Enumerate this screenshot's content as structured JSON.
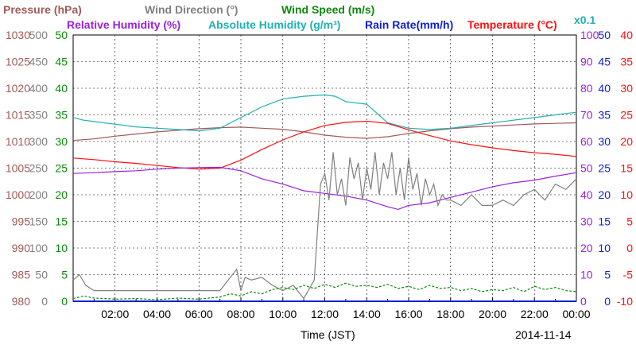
{
  "chart_data": {
    "type": "line",
    "date_label": "2014-11-14",
    "xlabel": "Time (JST)",
    "x_ticks": [
      "02:00",
      "04:00",
      "06:00",
      "08:00",
      "10:00",
      "12:00",
      "14:00",
      "16:00",
      "18:00",
      "20:00",
      "22:00",
      "00:00"
    ],
    "legend_top": [
      {
        "key": "pressure",
        "text": "Pressure (hPa)",
        "color": "#a05a5a"
      },
      {
        "key": "wind_dir",
        "text": "Wind Direction (°)",
        "color": "#808080"
      },
      {
        "key": "wind_speed",
        "text": "Wind Speed (m/s)",
        "color": "#0a8a0a"
      }
    ],
    "legend_bottom": [
      {
        "key": "rh",
        "text": "Relative Humidity (%)",
        "color": "#9a20e0"
      },
      {
        "key": "ah",
        "text": "Absolute Humidity (g/m³)",
        "color": "#20b0b0"
      },
      {
        "key": "rain",
        "text": "Rain Rate(mm/h)",
        "color": "#1020d0"
      },
      {
        "key": "temp",
        "text": "Temperature (°C)",
        "color": "#ff1010"
      }
    ],
    "ah_scale_note": "x0.1",
    "axes": {
      "pressure": {
        "color": "#a05a5a",
        "ylim": [
          980,
          1030
        ],
        "ticks": [
          "980",
          "985",
          "990",
          "995",
          "1000",
          "1005",
          "1010",
          "1015",
          "1020",
          "1025",
          "1030"
        ]
      },
      "wind_direction": {
        "color": "#808080",
        "ylim": [
          0,
          500
        ],
        "ticks": [
          "0",
          "50",
          "100",
          "150",
          "200",
          "250",
          "300",
          "350",
          "400",
          "450",
          "500"
        ]
      },
      "wind_speed": {
        "color": "#0a8a0a",
        "ylim": [
          0,
          50
        ],
        "ticks": [
          "0",
          "5",
          "10",
          "15",
          "20",
          "25",
          "30",
          "35",
          "40",
          "45",
          "50"
        ]
      },
      "humidity": {
        "color": "#9a20e0",
        "ylim": [
          0,
          100
        ],
        "ticks": [
          "0",
          "10",
          "20",
          "30",
          "40",
          "50",
          "60",
          "70",
          "80",
          "90",
          "100"
        ]
      },
      "rain": {
        "color": "#1020d0",
        "ylim": [
          0,
          50
        ],
        "ticks": [
          "0",
          "5",
          "10",
          "15",
          "20",
          "25",
          "30",
          "35",
          "40",
          "45",
          "50"
        ]
      },
      "temperature": {
        "color": "#ff1010",
        "ylim": [
          -10,
          40
        ],
        "ticks": [
          "-10",
          "-5",
          "0",
          "5",
          "10",
          "15",
          "20",
          "25",
          "30",
          "35",
          "40"
        ]
      }
    },
    "xlim_hours": [
      0,
      24
    ],
    "series": [
      {
        "name": "Pressure (hPa)",
        "axis": "pressure",
        "color": "#a05a5a",
        "x": [
          0,
          1,
          2,
          3,
          4,
          5,
          6,
          7,
          8,
          9,
          10,
          11,
          12,
          13,
          14,
          15,
          16,
          17,
          18,
          19,
          20,
          21,
          22,
          23,
          24
        ],
        "values": [
          1010.2,
          1010.5,
          1011.0,
          1011.4,
          1011.8,
          1012.1,
          1012.4,
          1012.6,
          1012.7,
          1012.5,
          1012.3,
          1011.8,
          1011.2,
          1010.8,
          1010.6,
          1010.9,
          1011.5,
          1012.0,
          1012.4,
          1012.7,
          1012.9,
          1013.1,
          1013.3,
          1013.4,
          1013.5
        ]
      },
      {
        "name": "Absolute Humidity (g/m³)",
        "axis": "humidity",
        "color": "#20b0b0",
        "x": [
          0,
          0.5,
          1,
          2,
          3,
          4,
          5,
          6,
          7,
          8,
          9,
          10,
          11,
          12,
          12.5,
          13,
          14,
          15,
          16,
          17,
          18,
          19,
          20,
          21,
          22,
          23,
          24
        ],
        "values": [
          69,
          68,
          67.5,
          66.5,
          65.5,
          65,
          64.5,
          64,
          65,
          69,
          73,
          76,
          77,
          77.5,
          77,
          75,
          74,
          67,
          65,
          64.5,
          65,
          66,
          67,
          68,
          69,
          70,
          71
        ]
      },
      {
        "name": "Temperature (°C)",
        "axis": "temperature",
        "color": "#ff1010",
        "x": [
          0,
          1,
          2,
          3,
          4,
          5,
          6,
          7,
          8,
          9,
          10,
          11,
          12,
          13,
          14,
          15,
          16,
          17,
          18,
          19,
          20,
          21,
          22,
          23,
          24
        ],
        "values": [
          16.9,
          16.6,
          16.2,
          15.9,
          15.5,
          15.1,
          14.8,
          15.0,
          16.5,
          18.5,
          20.3,
          21.8,
          23.0,
          23.6,
          23.8,
          23.4,
          22.2,
          21.1,
          20.1,
          19.4,
          18.8,
          18.3,
          17.9,
          17.6,
          17.2
        ]
      },
      {
        "name": "Relative Humidity (%)",
        "axis": "humidity",
        "color": "#9a20e0",
        "x": [
          0,
          1,
          2,
          3,
          4,
          5,
          6,
          7,
          8,
          9,
          10,
          11,
          12,
          13,
          14,
          15,
          15.5,
          16,
          17,
          18,
          19,
          20,
          21,
          22,
          23,
          24
        ],
        "values": [
          48,
          48.3,
          48.7,
          49,
          49.6,
          50,
          50.2,
          50.3,
          49,
          46,
          44,
          41.5,
          40.5,
          39.5,
          38,
          35.5,
          34.5,
          36,
          37,
          39,
          41,
          43,
          44.5,
          45.5,
          47,
          48.3
        ]
      },
      {
        "name": "Wind Direction (°)",
        "axis": "wind_direction",
        "color": "#808080",
        "x": [
          0,
          0.3,
          0.6,
          1,
          7,
          7.8,
          8,
          8.2,
          8.5,
          9,
          9.5,
          10,
          10.5,
          11,
          11.5,
          11.8,
          12,
          12.2,
          12.4,
          12.6,
          12.8,
          13,
          13.2,
          13.4,
          13.6,
          13.8,
          14,
          14.2,
          14.4,
          14.6,
          14.8,
          15,
          15.2,
          15.4,
          15.6,
          15.8,
          16,
          16.2,
          16.4,
          16.6,
          16.8,
          17,
          17.2,
          17.4,
          17.6,
          17.8,
          18,
          18.5,
          19,
          19.5,
          20,
          20.5,
          21,
          21.5,
          22,
          22.5,
          23,
          23.5,
          24
        ],
        "values": [
          40,
          50,
          30,
          20,
          20,
          60,
          20,
          45,
          40,
          45,
          30,
          20,
          30,
          5,
          40,
          220,
          240,
          190,
          280,
          200,
          230,
          180,
          270,
          230,
          260,
          190,
          250,
          210,
          280,
          200,
          260,
          230,
          280,
          200,
          250,
          190,
          270,
          210,
          240,
          180,
          230,
          200,
          220,
          180,
          200,
          190,
          190,
          180,
          200,
          180,
          180,
          190,
          180,
          200,
          210,
          190,
          220,
          210,
          230
        ]
      },
      {
        "name": "Wind Speed (m/s)",
        "axis": "wind_speed",
        "color": "#0a8a0a",
        "x": [
          0,
          0.5,
          1,
          2,
          3,
          4,
          5,
          6,
          7,
          7.5,
          8,
          8.5,
          9,
          9.5,
          10,
          10.5,
          11,
          11.5,
          12,
          12.5,
          13,
          13.5,
          14,
          14.5,
          15,
          15.5,
          16,
          16.5,
          17,
          17.5,
          18,
          18.5,
          19,
          19.5,
          20,
          20.5,
          21,
          21.5,
          22,
          22.5,
          23,
          23.5,
          24
        ],
        "values": [
          0.5,
          1.0,
          0.6,
          0.4,
          0.5,
          0.3,
          0.6,
          0.4,
          0.8,
          1.4,
          1.0,
          1.8,
          1.4,
          2.2,
          2.6,
          2.2,
          3.0,
          2.4,
          3.2,
          2.6,
          3.4,
          2.8,
          3.0,
          2.6,
          3.2,
          2.4,
          2.8,
          2.2,
          3.0,
          2.4,
          2.6,
          2.0,
          2.4,
          1.8,
          2.2,
          2.0,
          2.6,
          1.8,
          2.8,
          2.2,
          2.6,
          2.0,
          1.8
        ]
      },
      {
        "name": "Rain Rate(mm/h)",
        "axis": "rain",
        "color": "#1020d0",
        "x": [
          0,
          24
        ],
        "values": [
          0,
          0
        ]
      }
    ]
  }
}
